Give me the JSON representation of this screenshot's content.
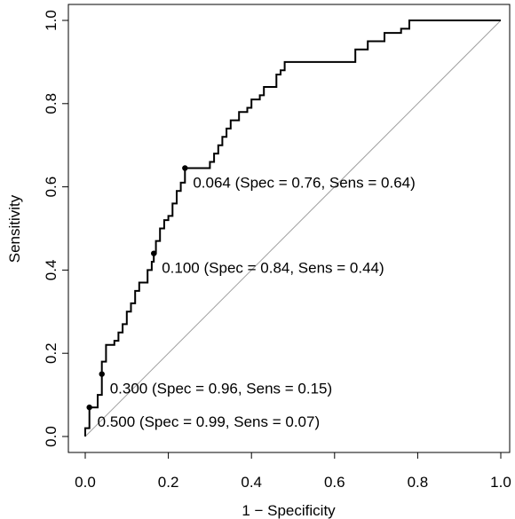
{
  "chart_data": {
    "type": "line",
    "xlabel": "1 − Specificity",
    "ylabel": "Sensitivity",
    "xlim": [
      0.0,
      1.0
    ],
    "ylim": [
      0.0,
      1.0
    ],
    "x_ticks": [
      "0.0",
      "0.2",
      "0.4",
      "0.6",
      "0.8",
      "1.0"
    ],
    "y_ticks": [
      "0.0",
      "0.2",
      "0.4",
      "0.6",
      "0.8",
      "1.0"
    ],
    "grid": false,
    "series": [
      {
        "points": [
          [
            0.0,
            0.0
          ],
          [
            0.0,
            0.02
          ],
          [
            0.01,
            0.02
          ],
          [
            0.01,
            0.07
          ],
          [
            0.02,
            0.07
          ],
          [
            0.03,
            0.07
          ],
          [
            0.03,
            0.1
          ],
          [
            0.04,
            0.1
          ],
          [
            0.04,
            0.15
          ],
          [
            0.04,
            0.18
          ],
          [
            0.05,
            0.18
          ],
          [
            0.05,
            0.22
          ],
          [
            0.07,
            0.22
          ],
          [
            0.07,
            0.23
          ],
          [
            0.08,
            0.23
          ],
          [
            0.08,
            0.25
          ],
          [
            0.09,
            0.25
          ],
          [
            0.09,
            0.27
          ],
          [
            0.1,
            0.27
          ],
          [
            0.1,
            0.3
          ],
          [
            0.11,
            0.3
          ],
          [
            0.11,
            0.32
          ],
          [
            0.12,
            0.32
          ],
          [
            0.12,
            0.35
          ],
          [
            0.13,
            0.35
          ],
          [
            0.13,
            0.37
          ],
          [
            0.15,
            0.37
          ],
          [
            0.15,
            0.4
          ],
          [
            0.16,
            0.4
          ],
          [
            0.16,
            0.42
          ],
          [
            0.165,
            0.42
          ],
          [
            0.165,
            0.44
          ],
          [
            0.17,
            0.44
          ],
          [
            0.17,
            0.47
          ],
          [
            0.18,
            0.47
          ],
          [
            0.18,
            0.5
          ],
          [
            0.19,
            0.5
          ],
          [
            0.19,
            0.52
          ],
          [
            0.2,
            0.52
          ],
          [
            0.2,
            0.53
          ],
          [
            0.21,
            0.53
          ],
          [
            0.21,
            0.56
          ],
          [
            0.22,
            0.56
          ],
          [
            0.22,
            0.59
          ],
          [
            0.23,
            0.59
          ],
          [
            0.23,
            0.61
          ],
          [
            0.24,
            0.61
          ],
          [
            0.24,
            0.645
          ],
          [
            0.3,
            0.645
          ],
          [
            0.3,
            0.66
          ],
          [
            0.31,
            0.66
          ],
          [
            0.31,
            0.68
          ],
          [
            0.32,
            0.68
          ],
          [
            0.32,
            0.7
          ],
          [
            0.33,
            0.7
          ],
          [
            0.33,
            0.72
          ],
          [
            0.34,
            0.72
          ],
          [
            0.34,
            0.74
          ],
          [
            0.35,
            0.74
          ],
          [
            0.35,
            0.76
          ],
          [
            0.37,
            0.76
          ],
          [
            0.37,
            0.78
          ],
          [
            0.39,
            0.78
          ],
          [
            0.39,
            0.79
          ],
          [
            0.4,
            0.79
          ],
          [
            0.4,
            0.81
          ],
          [
            0.42,
            0.81
          ],
          [
            0.42,
            0.82
          ],
          [
            0.43,
            0.82
          ],
          [
            0.43,
            0.84
          ],
          [
            0.46,
            0.84
          ],
          [
            0.46,
            0.87
          ],
          [
            0.47,
            0.87
          ],
          [
            0.47,
            0.88
          ],
          [
            0.48,
            0.88
          ],
          [
            0.48,
            0.9
          ],
          [
            0.65,
            0.9
          ],
          [
            0.65,
            0.93
          ],
          [
            0.68,
            0.93
          ],
          [
            0.68,
            0.95
          ],
          [
            0.72,
            0.95
          ],
          [
            0.72,
            0.97
          ],
          [
            0.76,
            0.97
          ],
          [
            0.76,
            0.98
          ],
          [
            0.78,
            0.98
          ],
          [
            0.78,
            1.0
          ],
          [
            1.0,
            1.0
          ]
        ]
      }
    ],
    "reference_line": [
      [
        0.0,
        0.0
      ],
      [
        1.0,
        1.0
      ]
    ],
    "annotations": [
      {
        "x": 0.24,
        "y": 0.645,
        "label": "0.064 (Spec = 0.76, Sens = 0.64)"
      },
      {
        "x": 0.165,
        "y": 0.44,
        "label": "0.100 (Spec = 0.84, Sens = 0.44)"
      },
      {
        "x": 0.04,
        "y": 0.15,
        "label": "0.300 (Spec = 0.96, Sens = 0.15)"
      },
      {
        "x": 0.01,
        "y": 0.07,
        "label": "0.500 (Spec = 0.99, Sens = 0.07)"
      }
    ],
    "colors": {
      "curve": "#000000",
      "reference": "#a0a0a0",
      "axes": "#000000"
    }
  }
}
